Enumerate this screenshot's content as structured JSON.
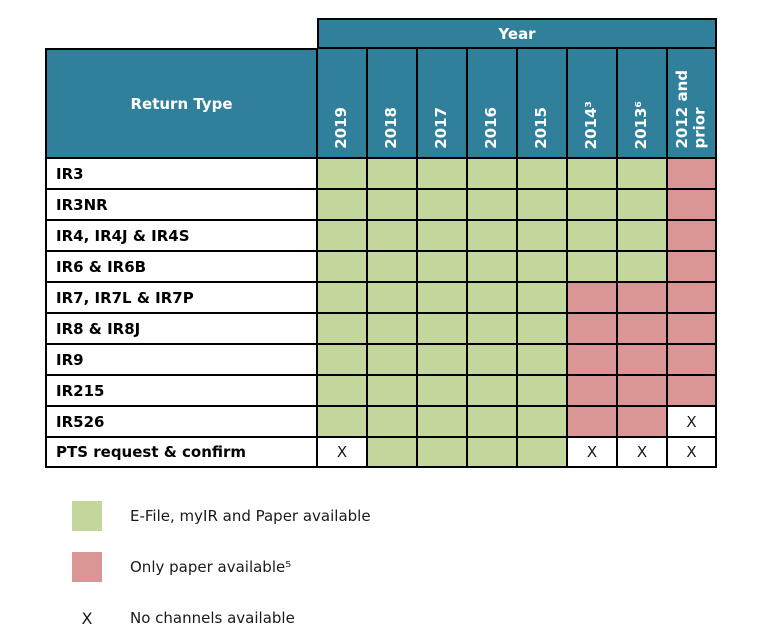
{
  "colors": {
    "header_teal": "#31809B",
    "available_green": "#C3D69B",
    "paper_red": "#D99694",
    "border_black": "#000000",
    "header_text": "#FFFFFF"
  },
  "table": {
    "year_header": "Year",
    "return_type_header": "Return Type",
    "year_columns": [
      "2019",
      "2018",
      "2017",
      "2016",
      "2015",
      "2014³",
      "2013⁶",
      "2012 and\nprior"
    ],
    "none_marker": "X",
    "rows": [
      {
        "label": "IR3",
        "cells": [
          "available",
          "available",
          "available",
          "available",
          "available",
          "available",
          "available",
          "paper"
        ]
      },
      {
        "label": "IR3NR",
        "cells": [
          "available",
          "available",
          "available",
          "available",
          "available",
          "available",
          "available",
          "paper"
        ]
      },
      {
        "label": "IR4, IR4J & IR4S",
        "cells": [
          "available",
          "available",
          "available",
          "available",
          "available",
          "available",
          "available",
          "paper"
        ]
      },
      {
        "label": "IR6 & IR6B",
        "cells": [
          "available",
          "available",
          "available",
          "available",
          "available",
          "available",
          "available",
          "paper"
        ]
      },
      {
        "label": "IR7, IR7L & IR7P",
        "cells": [
          "available",
          "available",
          "available",
          "available",
          "available",
          "paper",
          "paper",
          "paper"
        ]
      },
      {
        "label": "IR8 & IR8J",
        "cells": [
          "available",
          "available",
          "available",
          "available",
          "available",
          "paper",
          "paper",
          "paper"
        ]
      },
      {
        "label": "IR9",
        "cells": [
          "available",
          "available",
          "available",
          "available",
          "available",
          "paper",
          "paper",
          "paper"
        ]
      },
      {
        "label": "IR215",
        "cells": [
          "available",
          "available",
          "available",
          "available",
          "available",
          "paper",
          "paper",
          "paper"
        ]
      },
      {
        "label": "IR526",
        "cells": [
          "available",
          "available",
          "available",
          "available",
          "available",
          "paper",
          "paper",
          "none"
        ]
      },
      {
        "label": "PTS request & confirm",
        "cells": [
          "none",
          "available",
          "available",
          "available",
          "available",
          "none",
          "none",
          "none"
        ]
      }
    ]
  },
  "legend": [
    {
      "type": "available",
      "label": "E-File, myIR and Paper available"
    },
    {
      "type": "paper",
      "label": "Only paper available⁵"
    },
    {
      "type": "none",
      "label": "No channels available",
      "marker": "X"
    }
  ]
}
